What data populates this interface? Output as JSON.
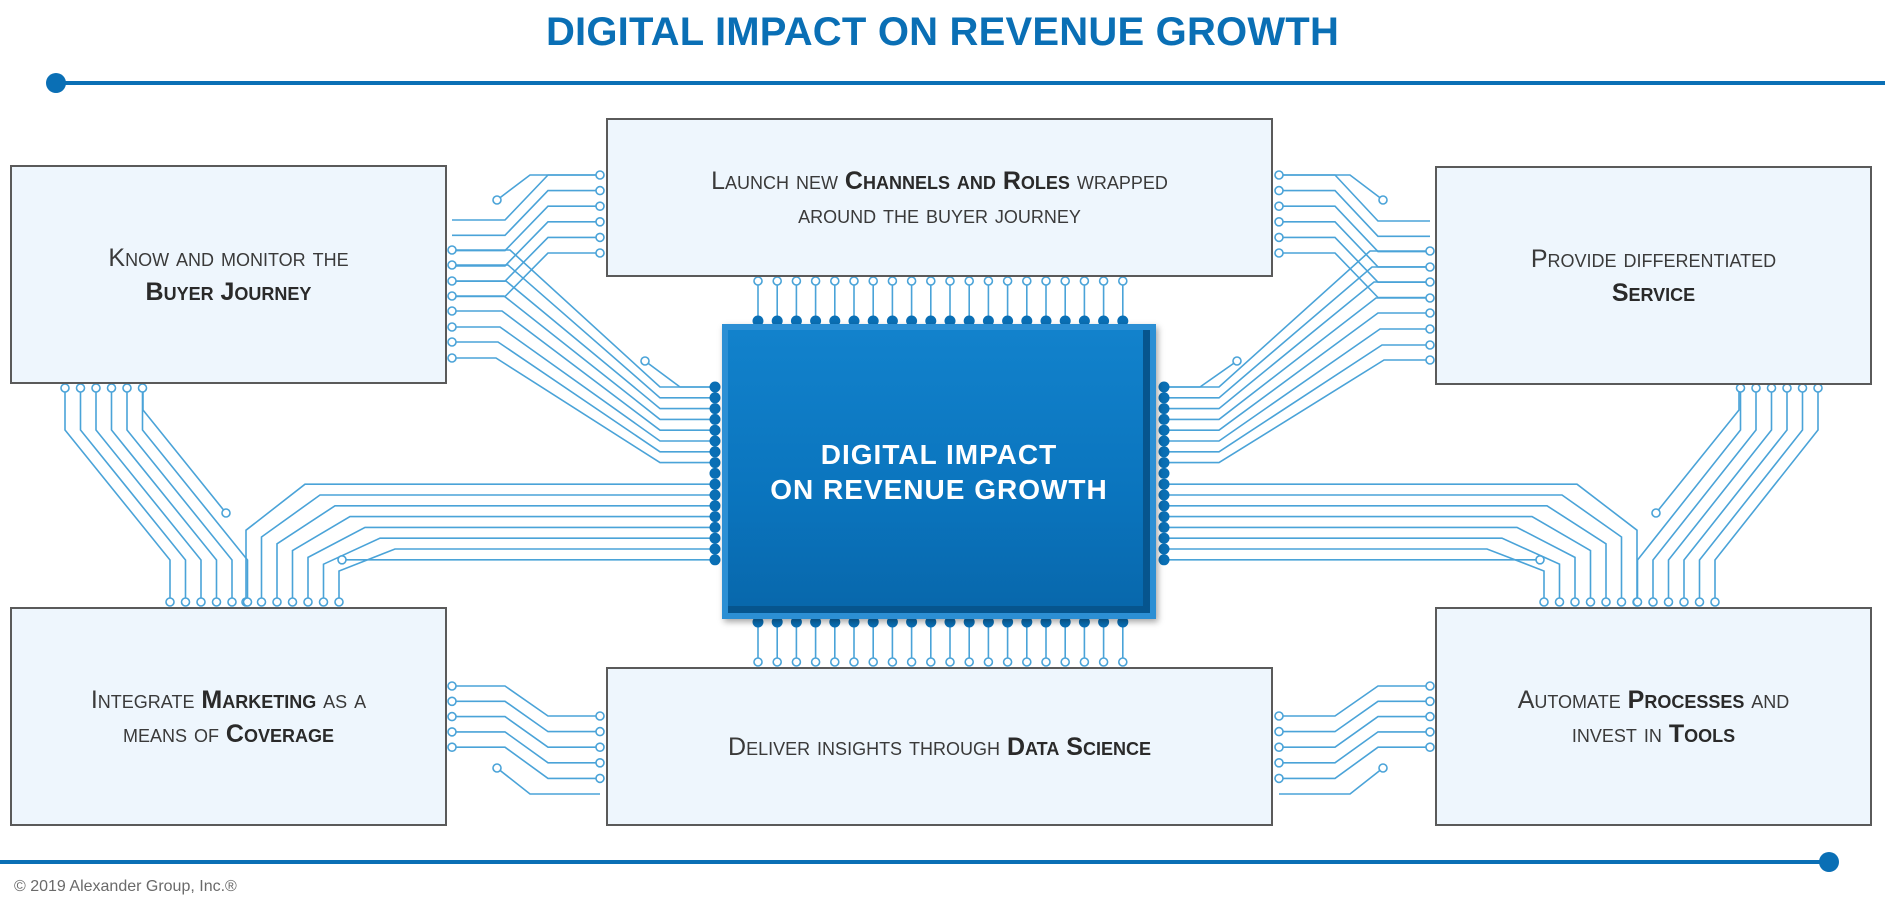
{
  "title": "DIGITAL IMPACT ON REVENUE GROWTH",
  "chip": {
    "line1": "DIGITAL IMPACT",
    "line2": "ON REVENUE GROWTH"
  },
  "boxes": {
    "top_left": {
      "a": "Know and monitor the",
      "b": "Buyer Journey"
    },
    "top_center": {
      "a": "Launch new ",
      "b": "Channels and Roles",
      "c": " wrapped",
      "d": "around the buyer journey"
    },
    "top_right": {
      "a": "Provide differentiated",
      "b": "Service"
    },
    "bottom_left": {
      "a": "Integrate ",
      "b": "Marketing",
      "c": " as a",
      "d": "means of ",
      "e": "Coverage"
    },
    "bottom_center": {
      "a": "Deliver insights through ",
      "b": "Data Science"
    },
    "bottom_right": {
      "a": "Automate ",
      "b": "Processes",
      "c": " and",
      "d": "invest in ",
      "e": "Tools"
    }
  },
  "footer": "© 2019 Alexander Group, Inc.®",
  "colors": {
    "accent": "#0a6fb5",
    "trace": "#4aa3d8",
    "chip": "#0a74bd",
    "box_fill": "#eef6fd"
  }
}
